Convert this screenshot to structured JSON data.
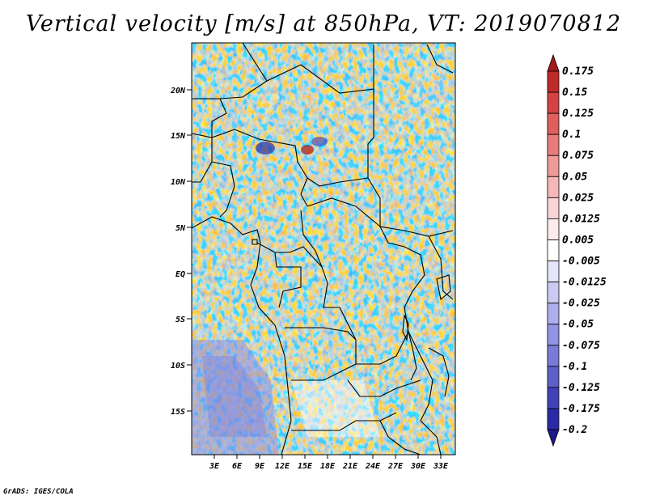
{
  "title": "Vertical velocity [m/s] at 850hPa, VT: 2019070812",
  "credit": "GrADS: IGES/COLA",
  "map": {
    "lat_labels": [
      "20N",
      "15N",
      "10N",
      "5N",
      "EQ",
      "5S",
      "10S",
      "15S"
    ],
    "lon_labels": [
      "3E",
      "6E",
      "9E",
      "12E",
      "15E",
      "18E",
      "21E",
      "24E",
      "27E",
      "30E",
      "33E"
    ]
  },
  "colorbar": {
    "labels": [
      "0.175",
      "0.15",
      "0.125",
      "0.1",
      "0.075",
      "0.05",
      "0.025",
      "0.0125",
      "0.005",
      "-0.005",
      "-0.0125",
      "-0.025",
      "-0.05",
      "-0.075",
      "-0.1",
      "-0.125",
      "-0.175",
      "-0.2"
    ],
    "colors": [
      "#a5181c",
      "#c02a2a",
      "#d24444",
      "#df5e5e",
      "#e87c7c",
      "#ef9a9a",
      "#f5b8b8",
      "#f9d4d4",
      "#fcebeb",
      "#ffffff",
      "#e4e4fb",
      "#cacaf3",
      "#aeaeed",
      "#9494e4",
      "#7a7ad8",
      "#5f5fc8",
      "#4242b8",
      "#2a2aa4",
      "#1a1a8a"
    ]
  }
}
